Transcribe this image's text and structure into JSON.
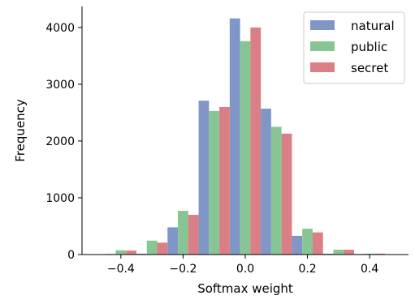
{
  "chart_data": {
    "type": "bar",
    "title": "",
    "xlabel": "Softmax weight",
    "ylabel": "Frequency",
    "xlim": [
      -0.525,
      0.525
    ],
    "ylim": [
      0,
      4370
    ],
    "x_ticks": [
      -0.4,
      -0.2,
      0.0,
      0.2,
      0.4
    ],
    "x_tick_labels": [
      "−0.4",
      "−0.2",
      "0.0",
      "0.2",
      "0.4"
    ],
    "y_ticks": [
      0,
      1000,
      2000,
      3000,
      4000
    ],
    "y_tick_labels": [
      "0",
      "1000",
      "2000",
      "3000",
      "4000"
    ],
    "bin_centers": [
      -0.4,
      -0.3,
      -0.2,
      -0.1,
      0.0,
      0.1,
      0.2,
      0.3,
      0.4
    ],
    "bin_width": 0.1,
    "legend_position": "upper right",
    "grid": false,
    "series": [
      {
        "name": "natural",
        "color": "#8096c7",
        "values": [
          10,
          15,
          480,
          2710,
          4160,
          2570,
          330,
          15,
          10
        ]
      },
      {
        "name": "public",
        "color": "#88c594",
        "values": [
          75,
          245,
          770,
          2530,
          3760,
          2250,
          455,
          85,
          15
        ]
      },
      {
        "name": "secret",
        "color": "#d97f85",
        "values": [
          70,
          210,
          700,
          2600,
          4000,
          2130,
          390,
          85,
          15
        ]
      }
    ]
  }
}
